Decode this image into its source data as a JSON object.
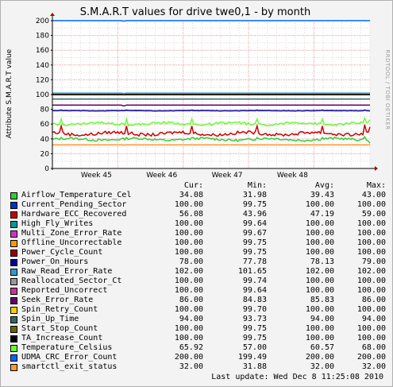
{
  "window": {
    "title": "S.M.A.R.T values for drive twe0,1 - by month",
    "watermark": "RRDTOOL / TOBI OETIKER"
  },
  "chart_data": {
    "type": "line",
    "title": "S.M.A.R.T values for drive twe0,1 - by month",
    "ylabel": "Attribute S.M.A.R.T value",
    "xlabel": "",
    "ylim": [
      0,
      200
    ],
    "yticks": [
      0,
      20,
      40,
      60,
      80,
      100,
      120,
      140,
      160,
      180,
      200
    ],
    "xlim": [
      "2010-11-04",
      "2010-12-08"
    ],
    "xticks": [
      {
        "label": "Week 45",
        "x": "2010-11-11"
      },
      {
        "label": "Week 46",
        "x": "2010-11-18"
      },
      {
        "label": "Week 47",
        "x": "2010-11-25"
      },
      {
        "label": "Week 48",
        "x": "2010-12-02"
      }
    ],
    "grid": true,
    "legend_placement": "bottom",
    "column_headers": [
      "Cur:",
      "Min:",
      "Avg:",
      "Max:"
    ],
    "series": [
      {
        "name": "Airflow_Temperature_Cel",
        "color": "#33cc33",
        "cur": "34.08",
        "min": "31.98",
        "avg": "39.43",
        "max": "43.00"
      },
      {
        "name": "Current_Pending_Sector",
        "color": "#0033cc",
        "cur": "100.00",
        "min": "99.75",
        "avg": "100.00",
        "max": "100.00"
      },
      {
        "name": "Hardware_ECC_Recovered",
        "color": "#cc0000",
        "cur": "56.08",
        "min": "43.96",
        "avg": "47.19",
        "max": "59.00"
      },
      {
        "name": "High_Fly_Writes",
        "color": "#009999",
        "cur": "100.00",
        "min": "99.64",
        "avg": "100.00",
        "max": "100.00"
      },
      {
        "name": "Multi_Zone_Error_Rate",
        "color": "#cc33cc",
        "cur": "100.00",
        "min": "99.67",
        "avg": "100.00",
        "max": "100.00"
      },
      {
        "name": "Offline_Uncorrectable",
        "color": "#ff9900",
        "cur": "100.00",
        "min": "99.75",
        "avg": "100.00",
        "max": "100.00"
      },
      {
        "name": "Power_Cycle_Count",
        "color": "#990000",
        "cur": "100.00",
        "min": "99.75",
        "avg": "100.00",
        "max": "100.00"
      },
      {
        "name": "Power_On_Hours",
        "color": "#000099",
        "cur": "78.00",
        "min": "77.78",
        "avg": "78.13",
        "max": "79.00"
      },
      {
        "name": "Raw_Read_Error_Rate",
        "color": "#3399cc",
        "cur": "102.00",
        "min": "101.65",
        "avg": "102.00",
        "max": "102.00"
      },
      {
        "name": "Reallocated_Sector_Ct",
        "color": "#999999",
        "cur": "100.00",
        "min": "99.74",
        "avg": "100.00",
        "max": "100.00"
      },
      {
        "name": "Reported_Uncorrect",
        "color": "#cc3399",
        "cur": "100.00",
        "min": "99.64",
        "avg": "100.00",
        "max": "100.00"
      },
      {
        "name": "Seek_Error_Rate",
        "color": "#660066",
        "cur": "86.00",
        "min": "84.83",
        "avg": "85.83",
        "max": "86.00"
      },
      {
        "name": "Spin_Retry_Count",
        "color": "#ffcc00",
        "cur": "100.00",
        "min": "99.70",
        "avg": "100.00",
        "max": "100.00"
      },
      {
        "name": "Spin_Up_Time",
        "color": "#336666",
        "cur": "94.00",
        "min": "93.73",
        "avg": "94.00",
        "max": "94.00"
      },
      {
        "name": "Start_Stop_Count",
        "color": "#666600",
        "cur": "100.00",
        "min": "99.75",
        "avg": "100.00",
        "max": "100.00"
      },
      {
        "name": "TA_Increase_Count",
        "color": "#000000",
        "cur": "100.00",
        "min": "99.75",
        "avg": "100.00",
        "max": "100.00"
      },
      {
        "name": "Temperature_Celsius",
        "color": "#66ff33",
        "cur": "65.92",
        "min": "57.00",
        "avg": "60.57",
        "max": "68.00"
      },
      {
        "name": "UDMA_CRC_Error_Count",
        "color": "#0066ff",
        "cur": "200.00",
        "min": "199.49",
        "avg": "200.00",
        "max": "200.00"
      },
      {
        "name": "smartctl_exit_status",
        "color": "#ff9933",
        "cur": "32.00",
        "min": "31.88",
        "avg": "32.00",
        "max": "32.00"
      }
    ]
  },
  "footer": {
    "last_update": "Last update: Wed Dec  8 11:25:08 2010"
  }
}
